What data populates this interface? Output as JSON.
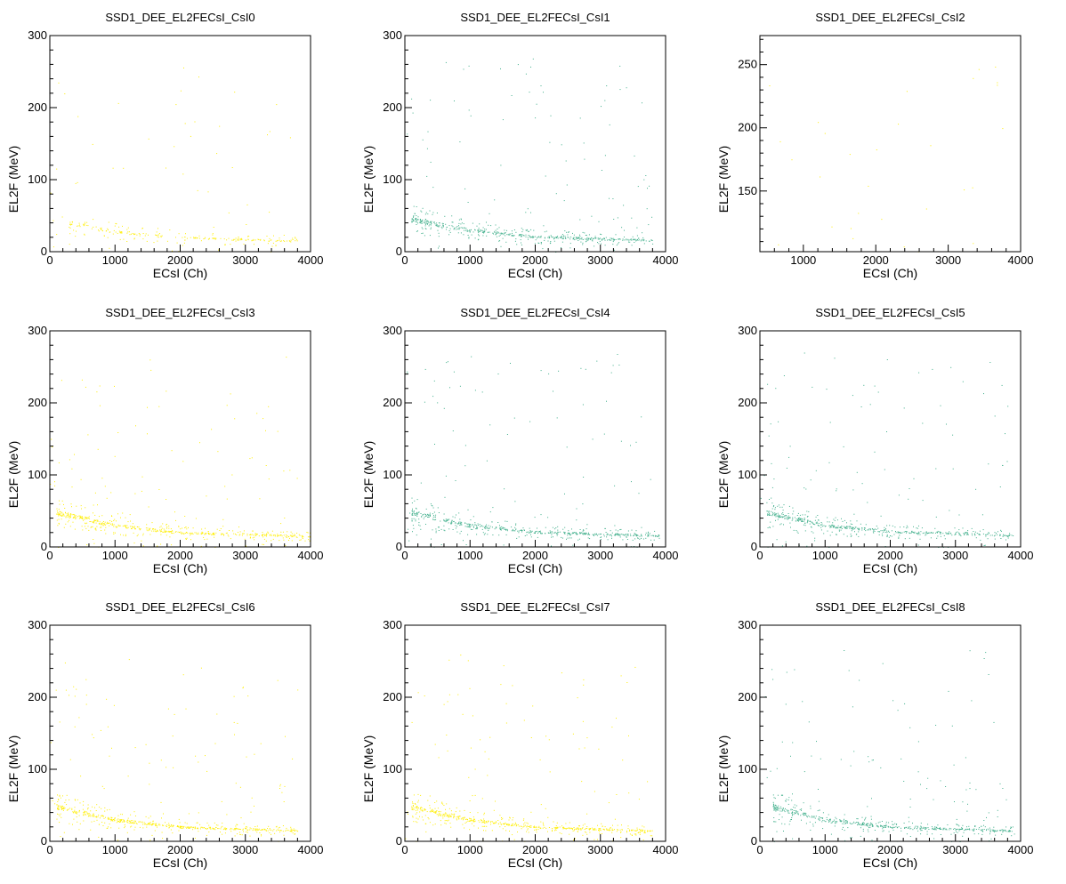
{
  "chart_data": [
    {
      "type": "scatter",
      "title": "SSD1_DEE_EL2FECsI_CsI0",
      "xlabel": "ECsI (Ch)",
      "ylabel": "EL2F (MeV)",
      "xlim": [
        0,
        4000
      ],
      "ylim": [
        0,
        300
      ],
      "xticks": [
        0,
        1000,
        2000,
        3000,
        4000
      ],
      "yticks": [
        0,
        100,
        200,
        300
      ],
      "color": "#ffee00",
      "density": "low",
      "band": {
        "x": [
          300,
          1000,
          2000,
          3800
        ],
        "y": [
          40,
          28,
          20,
          15
        ]
      },
      "points_note": "band + sparse points"
    },
    {
      "type": "scatter",
      "title": "SSD1_DEE_EL2FECsI_CsI1",
      "xlabel": "ECsI (Ch)",
      "ylabel": "EL2F (MeV)",
      "xlim": [
        0,
        4000
      ],
      "ylim": [
        0,
        300
      ],
      "xticks": [
        0,
        1000,
        2000,
        3000,
        4000
      ],
      "yticks": [
        0,
        100,
        200,
        300
      ],
      "color": "#3fae8a",
      "density": "medium",
      "band": {
        "x": [
          100,
          1000,
          2000,
          3800
        ],
        "y": [
          45,
          30,
          21,
          16
        ]
      }
    },
    {
      "type": "scatter",
      "title": "SSD1_DEE_EL2FECsI_CsI2",
      "xlabel": "ECsI (Ch)",
      "ylabel": "EL2F (MeV)",
      "xlim": [
        400,
        4000
      ],
      "ylim": [
        102,
        273
      ],
      "xticks": [
        1000,
        2000,
        3000,
        4000
      ],
      "yticks": [
        150,
        200,
        250
      ],
      "color": "#ffee00",
      "density": "very-low",
      "band": null
    },
    {
      "type": "scatter",
      "title": "SSD1_DEE_EL2FECsI_CsI3",
      "xlabel": "ECsI (Ch)",
      "ylabel": "EL2F (MeV)",
      "xlim": [
        0,
        4000
      ],
      "ylim": [
        0,
        300
      ],
      "xticks": [
        0,
        1000,
        2000,
        3000,
        4000
      ],
      "yticks": [
        0,
        100,
        200,
        300
      ],
      "color": "#ffee00",
      "density": "medium",
      "band": {
        "x": [
          100,
          1000,
          2000,
          4000
        ],
        "y": [
          48,
          30,
          20,
          15
        ]
      }
    },
    {
      "type": "scatter",
      "title": "SSD1_DEE_EL2FECsI_CsI4",
      "xlabel": "ECsI (Ch)",
      "ylabel": "EL2F (MeV)",
      "xlim": [
        0,
        4000
      ],
      "ylim": [
        0,
        300
      ],
      "xticks": [
        0,
        1000,
        2000,
        3000,
        4000
      ],
      "yticks": [
        0,
        100,
        200,
        300
      ],
      "color": "#3fae8a",
      "density": "medium",
      "band": {
        "x": [
          100,
          1000,
          2000,
          3900
        ],
        "y": [
          48,
          30,
          21,
          16
        ]
      }
    },
    {
      "type": "scatter",
      "title": "SSD1_DEE_EL2FECsI_CsI5",
      "xlabel": "ECsI (Ch)",
      "ylabel": "EL2F (MeV)",
      "xlim": [
        0,
        4000
      ],
      "ylim": [
        0,
        300
      ],
      "xticks": [
        0,
        1000,
        2000,
        3000,
        4000
      ],
      "yticks": [
        0,
        100,
        200,
        300
      ],
      "color": "#3fae8a",
      "density": "medium",
      "band": {
        "x": [
          100,
          1000,
          2000,
          3900
        ],
        "y": [
          48,
          30,
          22,
          16
        ]
      }
    },
    {
      "type": "scatter",
      "title": "SSD1_DEE_EL2FECsI_CsI6",
      "xlabel": "ECsI (Ch)",
      "ylabel": "EL2F (MeV)",
      "xlim": [
        0,
        4000
      ],
      "ylim": [
        0,
        300
      ],
      "xticks": [
        0,
        1000,
        2000,
        3000,
        4000
      ],
      "yticks": [
        0,
        100,
        200,
        300
      ],
      "color": "#ffee00",
      "density": "medium",
      "band": {
        "x": [
          100,
          1000,
          2000,
          3800
        ],
        "y": [
          48,
          30,
          20,
          15
        ]
      }
    },
    {
      "type": "scatter",
      "title": "SSD1_DEE_EL2FECsI_CsI7",
      "xlabel": "ECsI (Ch)",
      "ylabel": "EL2F (MeV)",
      "xlim": [
        0,
        4000
      ],
      "ylim": [
        0,
        300
      ],
      "xticks": [
        0,
        1000,
        2000,
        3000,
        4000
      ],
      "yticks": [
        0,
        100,
        200,
        300
      ],
      "color": "#ffee00",
      "density": "medium",
      "band": {
        "x": [
          100,
          1000,
          2000,
          3800
        ],
        "y": [
          48,
          30,
          20,
          15
        ]
      }
    },
    {
      "type": "scatter",
      "title": "SSD1_DEE_EL2FECsI_CsI8",
      "xlabel": "ECsI (Ch)",
      "ylabel": "EL2F (MeV)",
      "xlim": [
        0,
        4000
      ],
      "ylim": [
        0,
        300
      ],
      "xticks": [
        0,
        1000,
        2000,
        3000,
        4000
      ],
      "yticks": [
        0,
        100,
        200,
        300
      ],
      "color": "#3fae8a",
      "density": "medium",
      "band": {
        "x": [
          200,
          1000,
          2000,
          3900
        ],
        "y": [
          48,
          30,
          20,
          15
        ]
      }
    }
  ]
}
